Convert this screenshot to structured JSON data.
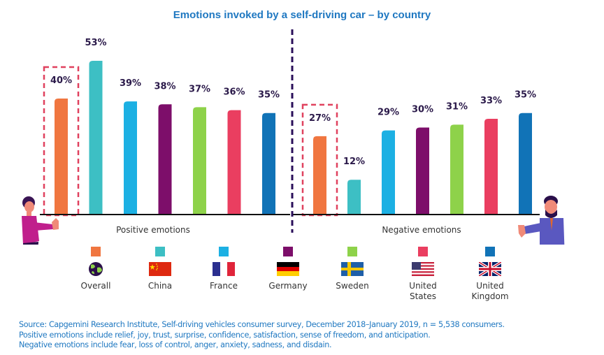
{
  "chart_data": {
    "type": "bar",
    "title": "Emotions invoked by a self-driving car – by country",
    "xlabel": "",
    "ylabel": "",
    "ylim": [
      0,
      55
    ],
    "grid": false,
    "groups": [
      "Positive emotions",
      "Negative emotions"
    ],
    "categories": [
      "Overall",
      "China",
      "France",
      "Germany",
      "Sweden",
      "United States",
      "United Kingdom"
    ],
    "series": [
      {
        "name": "Positive emotions",
        "values": [
          40,
          53,
          39,
          38,
          37,
          36,
          35
        ],
        "labels": [
          "40%",
          "53%",
          "39%",
          "38%",
          "37%",
          "36%",
          "35%"
        ]
      },
      {
        "name": "Negative emotions",
        "values": [
          27,
          12,
          29,
          30,
          31,
          33,
          35
        ],
        "labels": [
          "27%",
          "12%",
          "29%",
          "30%",
          "31%",
          "33%",
          "35%"
        ]
      }
    ],
    "colors": [
      "#f07640",
      "#3dbfc4",
      "#1cb0e3",
      "#7d0e6a",
      "#8ed24a",
      "#ea3e60",
      "#1173b7"
    ],
    "highlighted_category": "Overall",
    "legend_position": "bottom"
  },
  "legend": [
    {
      "label": "Overall",
      "icon": "globe-icon"
    },
    {
      "label": "China",
      "icon": "china-flag-icon"
    },
    {
      "label": "France",
      "icon": "france-flag-icon"
    },
    {
      "label": "Germany",
      "icon": "germany-flag-icon"
    },
    {
      "label": "Sweden",
      "icon": "sweden-flag-icon"
    },
    {
      "label": "United States",
      "icon": "usa-flag-icon"
    },
    {
      "label": "United Kingdom",
      "icon": "uk-flag-icon"
    }
  ],
  "illustrations": {
    "left": "woman-thumbs-up-icon",
    "right": "man-thumbs-down-icon"
  },
  "source": {
    "line1": "Source: Capgemini Research Institute, Self-driving vehicles consumer survey, December 2018–January 2019, n = 5,538 consumers.",
    "line2": "Positive emotions include relief, joy, trust, surprise, confidence, satisfaction, sense of freedom, and anticipation.",
    "line3": "Negative emotions include fear, loss of control, anger, anxiety, sadness, and disdain."
  },
  "accent_color": "#1f78c1"
}
